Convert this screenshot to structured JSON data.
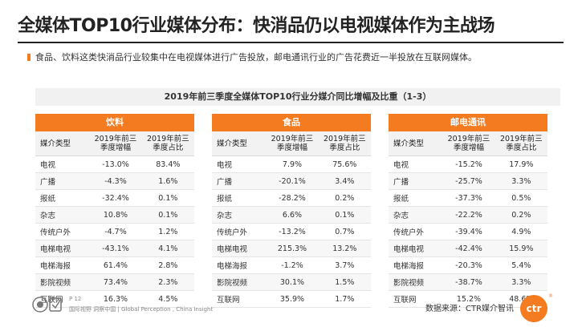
{
  "page": {
    "title": "全媒体TOP10行业媒体分布：快消品仍以电视媒体作为主战场",
    "bullet_text": "食品、饮料这类快消品行业较集中在电视媒体进行广告投放，邮电通讯行业的广告花费近一半投放在互联网媒体。",
    "subtitle": "2019年前三季度全媒体TOP10行业分媒介同比增幅及比重（1-3）",
    "accent_color": "#f47b20"
  },
  "columns": [
    "媒介类型",
    "2019年前三季度增幅",
    "2019年前三季度占比"
  ],
  "panels": [
    {
      "name": "饮料",
      "rows": [
        [
          "电视",
          "-13.0%",
          "83.4%"
        ],
        [
          "广播",
          "-4.3%",
          "1.6%"
        ],
        [
          "报纸",
          "-32.4%",
          "0.1%"
        ],
        [
          "杂志",
          "10.8%",
          "0.1%"
        ],
        [
          "传统户外",
          "-4.7%",
          "1.2%"
        ],
        [
          "电梯电视",
          "-43.1%",
          "4.1%"
        ],
        [
          "电梯海报",
          "61.4%",
          "2.8%"
        ],
        [
          "影院视频",
          "73.4%",
          "2.3%"
        ],
        [
          "互联网",
          "16.3%",
          "4.5%"
        ]
      ]
    },
    {
      "name": "食品",
      "rows": [
        [
          "电视",
          "7.9%",
          "75.6%"
        ],
        [
          "广播",
          "-20.1%",
          "3.4%"
        ],
        [
          "报纸",
          "-28.2%",
          "0.2%"
        ],
        [
          "杂志",
          "6.6%",
          "0.1%"
        ],
        [
          "传统户外",
          "-13.2%",
          "0.7%"
        ],
        [
          "电梯电视",
          "215.3%",
          "13.2%"
        ],
        [
          "电梯海报",
          "-1.2%",
          "3.7%"
        ],
        [
          "影院视频",
          "30.1%",
          "1.5%"
        ],
        [
          "互联网",
          "35.9%",
          "1.7%"
        ]
      ]
    },
    {
      "name": "邮电通讯",
      "rows": [
        [
          "电视",
          "-15.2%",
          "17.9%"
        ],
        [
          "广播",
          "-25.7%",
          "3.3%"
        ],
        [
          "报纸",
          "-37.3%",
          "0.5%"
        ],
        [
          "杂志",
          "-22.2%",
          "0.2%"
        ],
        [
          "传统户外",
          "-39.4%",
          "4.9%"
        ],
        [
          "电梯电视",
          "-42.4%",
          "15.9%"
        ],
        [
          "电梯海报",
          "-20.3%",
          "5.4%"
        ],
        [
          "影院视频",
          "-38.7%",
          "3.3%"
        ],
        [
          "互联网",
          "15.2%",
          "48.6%"
        ]
      ]
    }
  ],
  "footer": {
    "page_number": "P 12",
    "tagline": "国际视野 洞察中国 | Global Perception , China Insight",
    "source": "数据来源：CTR媒介智讯",
    "logo_text": "ctr",
    "logo_reg": "®"
  }
}
